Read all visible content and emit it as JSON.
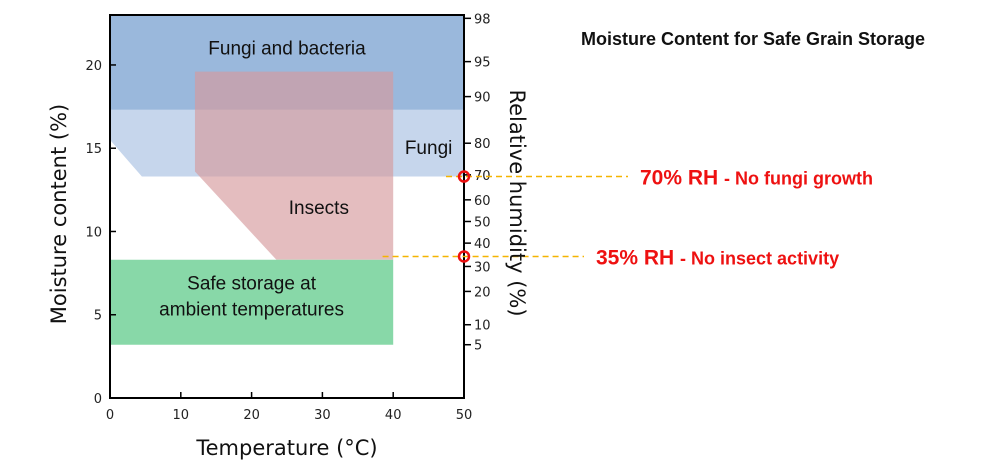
{
  "chart_data": {
    "type": "area",
    "title": "Moisture Content for Safe Grain Storage",
    "xlabel": "Temperature (°C)",
    "ylabel": "Moisture content (%)",
    "y2label": "Relative humidity (%)",
    "xlim": [
      0,
      50
    ],
    "ylim": [
      0,
      23
    ],
    "x_ticks": [
      "0",
      "10",
      "20",
      "30",
      "40",
      "50"
    ],
    "y_ticks": [
      "0",
      "5",
      "10",
      "15",
      "20"
    ],
    "rh_ticks": [
      {
        "label": "98",
        "mc": 22.8
      },
      {
        "label": "95",
        "mc": 20.2
      },
      {
        "label": "90",
        "mc": 18.1
      },
      {
        "label": "80",
        "mc": 15.3
      },
      {
        "label": "70",
        "mc": 13.4
      },
      {
        "label": "60",
        "mc": 11.9
      },
      {
        "label": "50",
        "mc": 10.6
      },
      {
        "label": "40",
        "mc": 9.3
      },
      {
        "label": "30",
        "mc": 7.9
      },
      {
        "label": "20",
        "mc": 6.4
      },
      {
        "label": "10",
        "mc": 4.4
      },
      {
        "label": "5",
        "mc": 3.2
      }
    ],
    "regions": [
      {
        "name": "Fungi and bacteria",
        "color": "#9ab8dc",
        "polygon": [
          [
            0,
            23
          ],
          [
            50,
            23
          ],
          [
            50,
            17.3
          ],
          [
            0,
            17.3
          ]
        ]
      },
      {
        "name": "Fungi",
        "color": "#c6d6ec",
        "polygon": [
          [
            0,
            17.3
          ],
          [
            50,
            17.3
          ],
          [
            50,
            13.3
          ],
          [
            4.5,
            13.3
          ],
          [
            0,
            15.5
          ]
        ]
      },
      {
        "name": "Insects",
        "color": "#d69a9c",
        "opacity": 0.65,
        "polygon": [
          [
            12,
            19.6
          ],
          [
            40,
            19.6
          ],
          [
            40,
            8.3
          ],
          [
            23.5,
            8.3
          ],
          [
            12,
            13.6
          ]
        ]
      },
      {
        "name": "Safe storage at ambient temperatures",
        "color": "#88d8a8",
        "polygon": [
          [
            0,
            8.3
          ],
          [
            40,
            8.3
          ],
          [
            40,
            3.2
          ],
          [
            0,
            3.2
          ]
        ]
      }
    ],
    "region_labels": [
      {
        "lines": [
          "Fungi and bacteria"
        ],
        "x": 25,
        "y": 21.0
      },
      {
        "lines": [
          "Fungi"
        ],
        "x": 45,
        "y": 15.0
      },
      {
        "lines": [
          "Insects"
        ],
        "x": 29.5,
        "y": 11.4
      },
      {
        "lines": [
          "Safe storage at",
          "ambient temperatures"
        ],
        "x": 20,
        "y": 6.1
      }
    ],
    "annotations": [
      {
        "rh": "70% RH",
        "text": "- No fungi growth",
        "x": 50,
        "y": 13.3
      },
      {
        "rh": "35% RH",
        "text": "- No insect activity",
        "x": 50,
        "y": 8.5
      }
    ],
    "colors": {
      "guide_line": "#f5b400",
      "marker": "#ee1111",
      "annotation": "#ee1111"
    }
  }
}
